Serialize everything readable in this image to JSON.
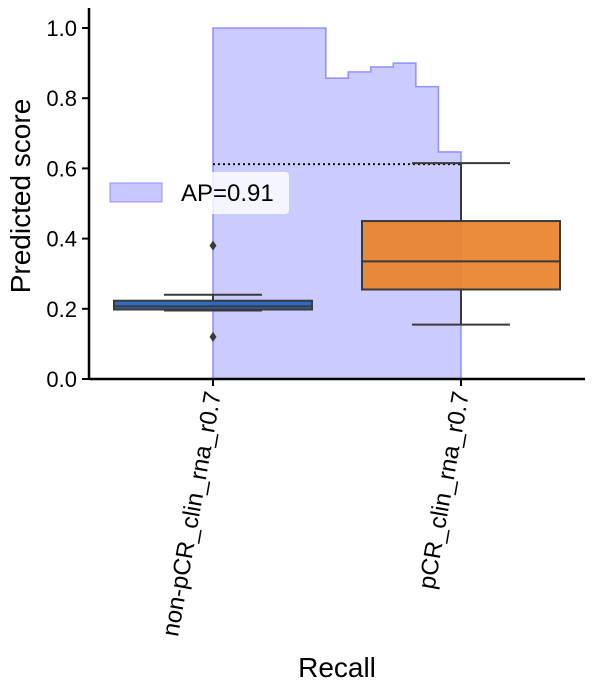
{
  "chart_data": {
    "type": "box",
    "xlabel": "Recall",
    "ylabel": "Predicted score",
    "ylim": [
      0,
      1.05
    ],
    "yticks": [
      0.0,
      0.2,
      0.4,
      0.6,
      0.8,
      1.0
    ],
    "ytick_labels": [
      "0.0",
      "0.2",
      "0.4",
      "0.6",
      "0.8",
      "1.0"
    ],
    "categories": [
      "non-pCR_clin_rna_r0.7",
      "pCR_clin_rna_r0.7"
    ],
    "boxes": [
      {
        "category": "non-pCR_clin_rna_r0.7",
        "whisker_low": 0.195,
        "q1": 0.198,
        "median": 0.207,
        "q3": 0.223,
        "whisker_high": 0.24,
        "outliers": [
          0.38,
          0.12
        ],
        "color": "#1f5fbf"
      },
      {
        "category": "pCR_clin_rna_r0.7",
        "whisker_low": 0.155,
        "q1": 0.255,
        "median": 0.335,
        "q3": 0.45,
        "whisker_high": 0.615,
        "outliers": [],
        "color": "#e8832a"
      }
    ],
    "pr_curve": {
      "label": "AP=0.91",
      "color": "#8080ff",
      "fill_color": "#c8c8ff",
      "x_start": 0.0,
      "x_end": 1.0,
      "steps": [
        {
          "x0": 0.0,
          "x1": 0.455,
          "y": 1.0
        },
        {
          "x0": 0.455,
          "x1": 0.545,
          "y": 0.857
        },
        {
          "x0": 0.545,
          "x1": 0.636,
          "y": 0.875
        },
        {
          "x0": 0.636,
          "x1": 0.727,
          "y": 0.889
        },
        {
          "x0": 0.727,
          "x1": 0.818,
          "y": 0.9
        },
        {
          "x0": 0.818,
          "x1": 0.909,
          "y": 0.833
        },
        {
          "x0": 0.909,
          "x1": 1.0,
          "y": 0.647
        }
      ],
      "baseline": 0.612
    },
    "legend": {
      "position": "center-left",
      "entries": [
        "AP=0.91"
      ]
    },
    "grid": false
  }
}
